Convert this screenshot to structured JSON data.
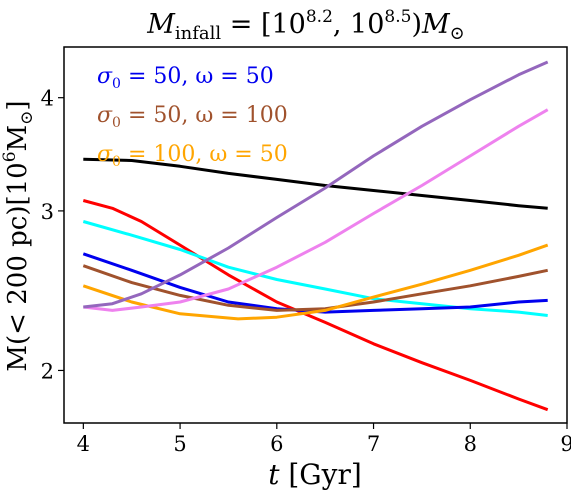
{
  "chart_data": {
    "type": "line",
    "title": "M_infall = [10^8.2, 10^8.5) M_☉",
    "title_parts": {
      "lhs": "M",
      "lhs_sub": "infall",
      "eq": " = [10",
      "e1": "8.2",
      "mid": ", 10",
      "e2": "8.5",
      "close": ")",
      "rhs": "M",
      "rhs_sub": "⊙"
    },
    "xlabel": "t [Gyr]",
    "xlabel_parts": {
      "var": "t",
      "unit": " [Gyr]"
    },
    "ylabel": "M(< 200 pc)[10^6 M_⊙]",
    "ylabel_parts": {
      "main": "M(< 200 pc)[10",
      "exp": "6",
      "unit": "M",
      "unit_sub": "⊙",
      "close": "]"
    },
    "x_ticks": [
      "4",
      "5",
      "6",
      "7",
      "8",
      "9"
    ],
    "y_ticks": [
      "2",
      "3",
      "4"
    ],
    "xlim": [
      3.8,
      9.0
    ],
    "ylim": [
      1.75,
      4.55
    ],
    "y_scale": "log",
    "grid": false,
    "legend": [
      {
        "sigma": "σ",
        "sub": "0",
        "text": " = 50, ω = 50",
        "color": "#0000ee"
      },
      {
        "sigma": "σ",
        "sub": "0",
        "text": " = 50, ω = 100",
        "color": "#a0522d"
      },
      {
        "sigma": "σ",
        "sub": "0",
        "text": " = 100, ω = 50",
        "color": "#ffa500"
      }
    ],
    "legend_position": "top-left",
    "series": [
      {
        "color": "#000000",
        "x": [
          4.0,
          4.5,
          5.0,
          5.5,
          6.0,
          6.5,
          7.0,
          7.5,
          8.0,
          8.5,
          8.8
        ],
        "values": [
          3.42,
          3.41,
          3.36,
          3.3,
          3.25,
          3.2,
          3.16,
          3.12,
          3.08,
          3.04,
          3.02
        ]
      },
      {
        "color": "#ff0000",
        "x": [
          4.0,
          4.3,
          4.6,
          5.0,
          5.5,
          6.0,
          6.5,
          7.0,
          7.5,
          8.0,
          8.5,
          8.8
        ],
        "values": [
          3.08,
          3.02,
          2.92,
          2.75,
          2.55,
          2.38,
          2.26,
          2.14,
          2.04,
          1.95,
          1.86,
          1.81
        ]
      },
      {
        "color": "#00ffff",
        "x": [
          4.0,
          4.5,
          5.0,
          5.5,
          6.0,
          6.5,
          7.0,
          7.5,
          8.0,
          8.5,
          8.8
        ],
        "values": [
          2.92,
          2.82,
          2.72,
          2.6,
          2.52,
          2.46,
          2.4,
          2.37,
          2.34,
          2.32,
          2.3
        ]
      },
      {
        "color": "#0000ee",
        "x": [
          4.0,
          4.5,
          5.0,
          5.5,
          6.0,
          6.5,
          7.0,
          7.5,
          8.0,
          8.5,
          8.8
        ],
        "values": [
          2.69,
          2.58,
          2.47,
          2.38,
          2.34,
          2.32,
          2.33,
          2.34,
          2.35,
          2.38,
          2.39
        ]
      },
      {
        "color": "#a0522d",
        "x": [
          4.0,
          4.5,
          5.0,
          5.5,
          6.0,
          6.5,
          7.0,
          7.5,
          8.0,
          8.5,
          8.8
        ],
        "values": [
          2.61,
          2.5,
          2.42,
          2.36,
          2.33,
          2.34,
          2.38,
          2.43,
          2.48,
          2.54,
          2.58
        ]
      },
      {
        "color": "#ffa500",
        "x": [
          4.0,
          4.5,
          5.0,
          5.6,
          6.0,
          6.5,
          7.0,
          7.5,
          8.0,
          8.5,
          8.8
        ],
        "values": [
          2.48,
          2.38,
          2.31,
          2.28,
          2.29,
          2.33,
          2.41,
          2.49,
          2.58,
          2.68,
          2.75
        ]
      },
      {
        "color": "#ee82ee",
        "x": [
          4.0,
          4.3,
          4.6,
          5.0,
          5.5,
          6.0,
          6.5,
          7.0,
          7.5,
          8.0,
          8.5,
          8.8
        ],
        "values": [
          2.35,
          2.33,
          2.35,
          2.38,
          2.46,
          2.6,
          2.77,
          2.98,
          3.2,
          3.45,
          3.72,
          3.88
        ]
      },
      {
        "color": "#9467bd",
        "x": [
          4.0,
          4.3,
          4.6,
          5.0,
          5.5,
          6.0,
          6.5,
          7.0,
          7.5,
          8.0,
          8.5,
          8.8
        ],
        "values": [
          2.35,
          2.37,
          2.43,
          2.55,
          2.73,
          2.95,
          3.18,
          3.45,
          3.72,
          3.98,
          4.24,
          4.38
        ]
      }
    ]
  }
}
